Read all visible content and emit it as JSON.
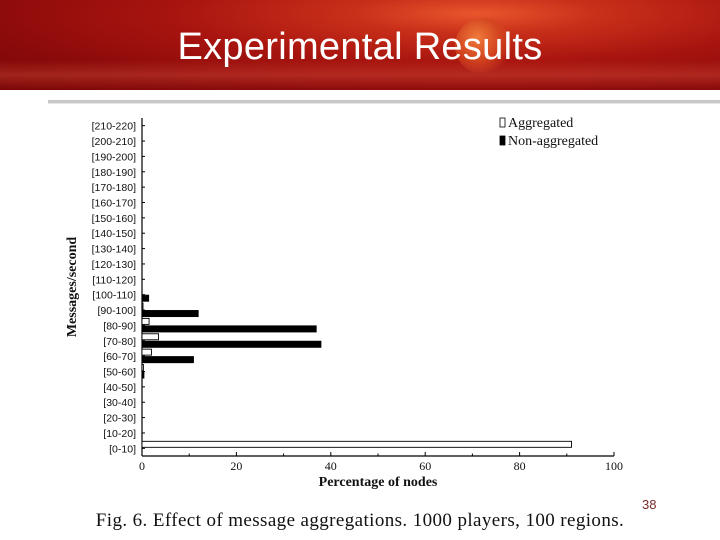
{
  "slide": {
    "title": "Experimental Results",
    "page_number": "38",
    "caption": "Fig. 6.   Effect of message aggregations. 1000 players, 100 regions."
  },
  "chart_data": {
    "type": "bar",
    "orientation": "horizontal",
    "categories": [
      "[0-10]",
      "[10-20]",
      "[20-30]",
      "[30-40]",
      "[40-50]",
      "[50-60]",
      "[60-70]",
      "[70-80]",
      "[80-90]",
      "[90-100]",
      "[100-110]",
      "[110-120]",
      "[120-130]",
      "[130-140]",
      "[140-150]",
      "[150-160]",
      "[160-170]",
      "[170-180]",
      "[180-190]",
      "[190-200]",
      "[200-210]",
      "[210-220]"
    ],
    "series": [
      {
        "name": "Aggregated",
        "color": "#ffffff",
        "values": [
          91,
          0,
          0,
          0,
          0,
          0.3,
          2,
          3.5,
          1.5,
          0.2,
          0,
          0,
          0,
          0,
          0,
          0,
          0,
          0,
          0,
          0,
          0,
          0
        ]
      },
      {
        "name": "Non-aggregated",
        "color": "#000000",
        "values": [
          0,
          0,
          0,
          0,
          0,
          0.5,
          11,
          38,
          37,
          12,
          1.5,
          0,
          0,
          0,
          0,
          0,
          0,
          0,
          0,
          0,
          0,
          0
        ]
      }
    ],
    "xlabel": "Percentage of nodes",
    "ylabel": "Messages/second",
    "xlim": [
      0,
      100
    ],
    "xticks": [
      "0",
      "20",
      "40",
      "60",
      "80",
      "100"
    ],
    "legend_position": "top-right",
    "grid": false
  }
}
